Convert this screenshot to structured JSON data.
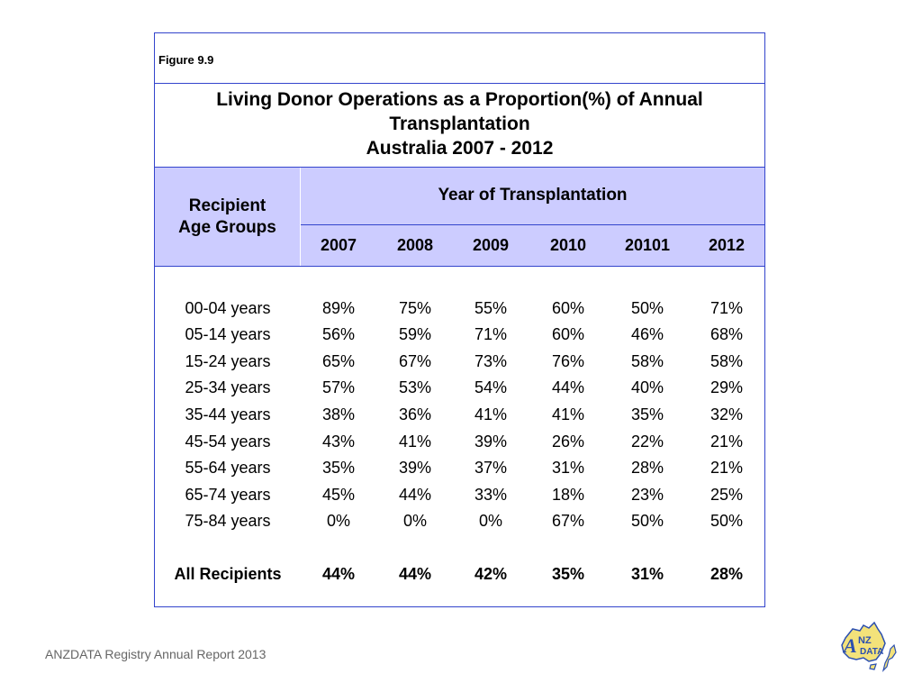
{
  "figure_label": "Figure 9.9",
  "title_lines": [
    "Living Donor Operations as a Proportion(%) of Annual",
    "Transplantation",
    "Australia  2007 - 2012"
  ],
  "header": {
    "row_label_lines": [
      "Recipient",
      "Age Groups"
    ],
    "group_label": "Year of Transplantation",
    "years": [
      "2007",
      "2008",
      "2009",
      "2010",
      "20101",
      "2012"
    ]
  },
  "rows": [
    {
      "label": "00-04 years",
      "values": [
        "89%",
        "75%",
        "55%",
        "60%",
        "50%",
        "71%"
      ]
    },
    {
      "label": "05-14 years",
      "values": [
        "56%",
        "59%",
        "71%",
        "60%",
        "46%",
        "68%"
      ]
    },
    {
      "label": "15-24 years",
      "values": [
        "65%",
        "67%",
        "73%",
        "76%",
        "58%",
        "58%"
      ]
    },
    {
      "label": "25-34 years",
      "values": [
        "57%",
        "53%",
        "54%",
        "44%",
        "40%",
        "29%"
      ]
    },
    {
      "label": "35-44 years",
      "values": [
        "38%",
        "36%",
        "41%",
        "41%",
        "35%",
        "32%"
      ]
    },
    {
      "label": "45-54 years",
      "values": [
        "43%",
        "41%",
        "39%",
        "26%",
        "22%",
        "21%"
      ]
    },
    {
      "label": "55-64 years",
      "values": [
        "35%",
        "39%",
        "37%",
        "31%",
        "28%",
        "21%"
      ]
    },
    {
      "label": "65-74 years",
      "values": [
        "45%",
        "44%",
        "33%",
        "18%",
        "23%",
        "25%"
      ]
    },
    {
      "label": "75-84 years",
      "values": [
        "0%",
        "0%",
        "0%",
        "67%",
        "50%",
        "50%"
      ]
    }
  ],
  "total": {
    "label": "All Recipients",
    "values": [
      "44%",
      "44%",
      "42%",
      "35%",
      "31%",
      "28%"
    ]
  },
  "footer": "ANZDATA Registry Annual Report 2013",
  "logo": {
    "letters": [
      "A",
      "NZ",
      "DATA"
    ],
    "fill_color": "#f3e27a",
    "outline_color": "#2b4fb0"
  },
  "colors": {
    "border": "#3344cc",
    "header_fill": "#ccccff"
  }
}
